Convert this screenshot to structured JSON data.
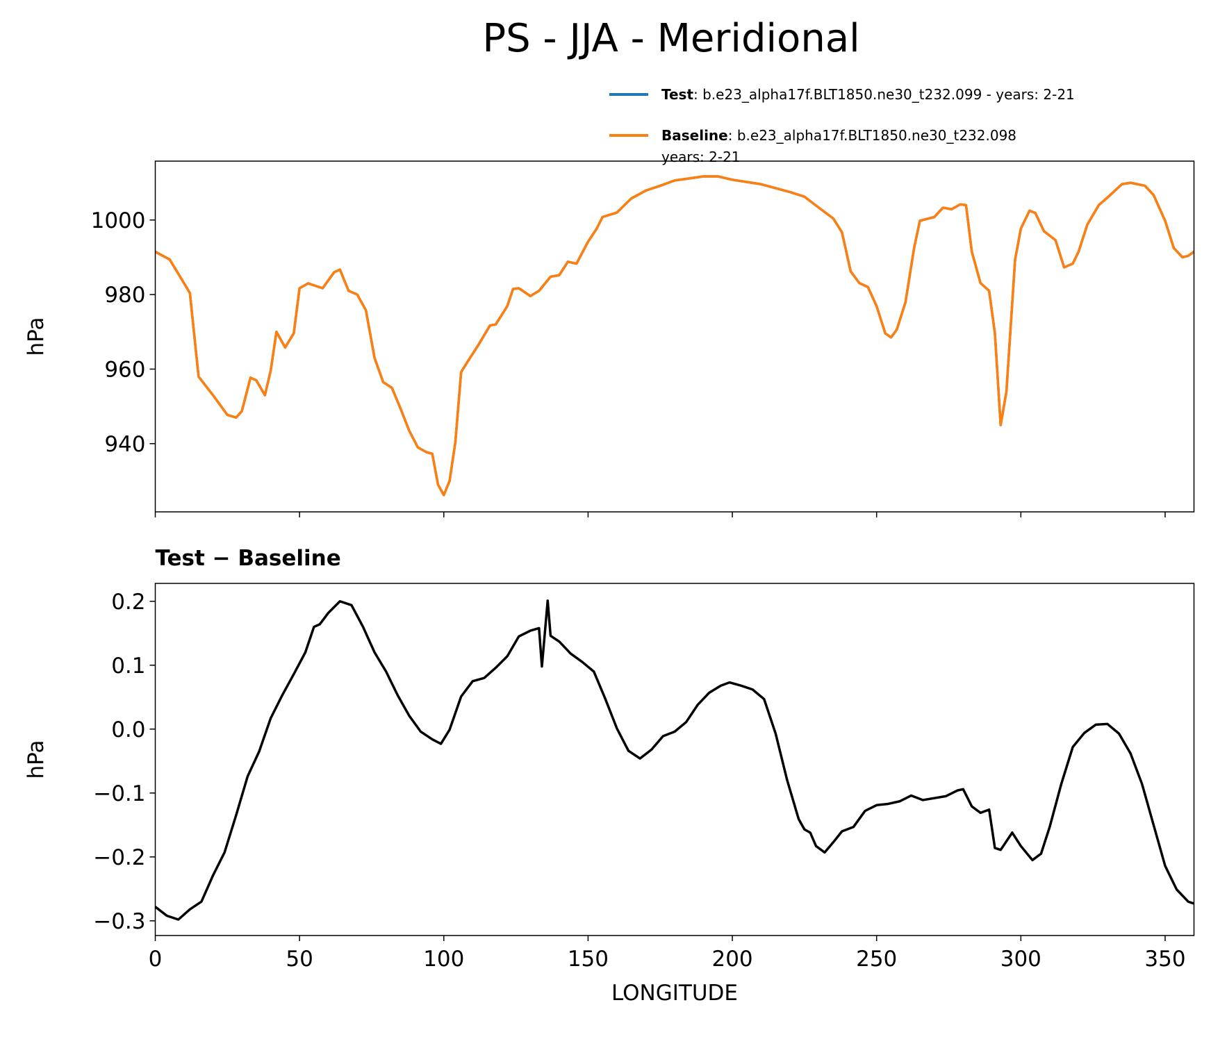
{
  "title": "PS - JJA - Meridional",
  "chart_data": [
    {
      "type": "line",
      "ylabel": "hPa",
      "x": [
        0,
        5,
        10,
        12,
        15,
        20,
        25,
        28,
        30,
        33,
        35,
        38,
        40,
        42,
        45,
        48,
        50,
        53,
        58,
        62,
        64,
        67,
        70,
        73,
        76,
        79,
        82,
        85,
        88,
        91,
        94,
        96,
        98,
        100,
        102,
        104,
        106,
        108,
        112,
        116,
        118,
        122,
        124,
        126,
        130,
        133,
        137,
        140,
        143,
        146,
        150,
        153,
        155,
        160,
        165,
        170,
        175,
        180,
        190,
        195,
        200,
        210,
        220,
        225,
        230,
        235,
        238,
        241,
        244,
        247,
        250,
        253,
        255,
        257,
        260,
        263,
        265,
        267,
        270,
        273,
        276,
        279,
        281,
        283,
        286,
        289,
        291,
        293,
        295,
        298,
        300,
        303,
        305,
        308,
        312,
        315,
        318,
        320,
        323,
        327,
        330,
        335,
        338,
        343,
        346,
        350,
        353,
        356,
        358,
        360
      ],
      "series": [
        {
          "name": "Test",
          "description": ": b.e23_alpha17f.BLT1850.ne30_t232.099 - years: 2-21",
          "color": "#1f77b4",
          "values": [
            991.5,
            989.4,
            983,
            980.4,
            958,
            953,
            947.7,
            947,
            948.7,
            957.7,
            957,
            953,
            959.6,
            970,
            965.8,
            969.6,
            981.7,
            983,
            981.7,
            986,
            986.7,
            981,
            980,
            975.8,
            963,
            956.5,
            955,
            949.4,
            943.5,
            939,
            937.7,
            937.3,
            929,
            926.2,
            930,
            940.4,
            959.2,
            961.7,
            966.5,
            971.7,
            972,
            976.9,
            981.5,
            981.7,
            979.6,
            981,
            984.8,
            985.2,
            988.8,
            988.3,
            994.2,
            997.7,
            1000.8,
            1002,
            1005.8,
            1007.9,
            1009.2,
            1010.6,
            1011.7,
            1011.7,
            1010.8,
            1009.6,
            1007.5,
            1006.25,
            1003.3,
            1000.4,
            996.7,
            986.25,
            983.1,
            982,
            976.9,
            969.6,
            968.5,
            970.6,
            977.9,
            992.5,
            999.8,
            1000.2,
            1000.8,
            1003.3,
            1002.9,
            1004.2,
            1004,
            991.5,
            983.1,
            981,
            969.6,
            945,
            954,
            989.4,
            997.7,
            1002.5,
            1001.9,
            997,
            994.6,
            987.3,
            988.3,
            991.5,
            998.7,
            1004,
            1006,
            1009.6,
            1010,
            1009.2,
            1006.7,
            999.8,
            992.5,
            990,
            990.4,
            991.5
          ]
        },
        {
          "name": "Baseline",
          "description": [
            ": b.e23_alpha17f.BLT1850.ne30_t232.098",
            "years: 2-21"
          ],
          "color": "#ff7f0e",
          "values": [
            991.5,
            989.4,
            983,
            980.4,
            958,
            953,
            947.7,
            947,
            948.7,
            957.7,
            957,
            953,
            959.6,
            970,
            965.8,
            969.6,
            981.7,
            983,
            981.7,
            986,
            986.7,
            981,
            980,
            975.8,
            963,
            956.5,
            955,
            949.4,
            943.5,
            939,
            937.7,
            937.3,
            929,
            926.2,
            930,
            940.4,
            959.2,
            961.7,
            966.5,
            971.7,
            972,
            976.9,
            981.5,
            981.7,
            979.6,
            981,
            984.8,
            985.2,
            988.8,
            988.3,
            994.2,
            997.7,
            1000.8,
            1002,
            1005.8,
            1007.9,
            1009.2,
            1010.6,
            1011.7,
            1011.7,
            1010.8,
            1009.6,
            1007.5,
            1006.25,
            1003.3,
            1000.4,
            996.7,
            986.25,
            983.1,
            982,
            976.9,
            969.6,
            968.5,
            970.6,
            977.9,
            992.5,
            999.8,
            1000.2,
            1000.8,
            1003.3,
            1002.9,
            1004.2,
            1004,
            991.5,
            983.1,
            981,
            969.6,
            945,
            954,
            989.4,
            997.7,
            1002.5,
            1001.9,
            997,
            994.6,
            987.3,
            988.3,
            991.5,
            998.7,
            1004,
            1006,
            1009.6,
            1010,
            1009.2,
            1006.7,
            999.8,
            992.5,
            990,
            990.4,
            991.5
          ]
        }
      ],
      "xlim": [
        0,
        360
      ],
      "xticks": [
        0,
        50,
        100,
        150,
        200,
        250,
        300,
        350
      ],
      "show_xtick_labels": false,
      "ylim": [
        921.7,
        1015.8
      ],
      "yticks": [
        940,
        960,
        980,
        1000
      ]
    },
    {
      "type": "line",
      "title": "Test − Baseline",
      "ylabel": "hPa",
      "xlabel": "LONGITUDE",
      "x": [
        0,
        4,
        8,
        12,
        16,
        20,
        24,
        28,
        32,
        36,
        40,
        44,
        48,
        52,
        55,
        57,
        60,
        64,
        68,
        72,
        76,
        80,
        84,
        88,
        92,
        96,
        99,
        102,
        106,
        110,
        114,
        118,
        122,
        126,
        130,
        133,
        134,
        136,
        137,
        140,
        144,
        148,
        152,
        156,
        160,
        164,
        168,
        172,
        176,
        180,
        184,
        188,
        192,
        196,
        199,
        203,
        207,
        211,
        215,
        219,
        223,
        225,
        227,
        229,
        232,
        235,
        238,
        242,
        246,
        250,
        254,
        258,
        262,
        266,
        270,
        274,
        278,
        280,
        283,
        286,
        289,
        291,
        293,
        297,
        300,
        304,
        307,
        310,
        314,
        318,
        322,
        326,
        330,
        334,
        338,
        342,
        346,
        350,
        354,
        358,
        360
      ],
      "values": [
        -0.278,
        -0.292,
        -0.298,
        -0.282,
        -0.27,
        -0.229,
        -0.193,
        -0.135,
        -0.074,
        -0.035,
        0.017,
        0.053,
        0.086,
        0.12,
        0.16,
        0.164,
        0.182,
        0.2,
        0.194,
        0.16,
        0.12,
        0.09,
        0.053,
        0.021,
        -0.004,
        -0.016,
        -0.023,
        -0.001,
        0.051,
        0.075,
        0.08,
        0.096,
        0.114,
        0.145,
        0.154,
        0.158,
        0.098,
        0.201,
        0.146,
        0.137,
        0.118,
        0.105,
        0.09,
        0.047,
        0.001,
        -0.034,
        -0.046,
        -0.032,
        -0.011,
        -0.004,
        0.011,
        0.038,
        0.057,
        0.068,
        0.073,
        0.068,
        0.062,
        0.047,
        -0.007,
        -0.08,
        -0.141,
        -0.157,
        -0.162,
        -0.183,
        -0.193,
        -0.177,
        -0.16,
        -0.153,
        -0.128,
        -0.119,
        -0.117,
        -0.113,
        -0.104,
        -0.111,
        -0.108,
        -0.105,
        -0.096,
        -0.094,
        -0.121,
        -0.131,
        -0.126,
        -0.186,
        -0.189,
        -0.162,
        -0.183,
        -0.205,
        -0.195,
        -0.153,
        -0.086,
        -0.028,
        -0.006,
        0.007,
        0.008,
        -0.007,
        -0.038,
        -0.086,
        -0.15,
        -0.214,
        -0.251,
        -0.27,
        -0.273
      ],
      "color": "#000000",
      "xlim": [
        0,
        360
      ],
      "xticks": [
        0,
        50,
        100,
        150,
        200,
        250,
        300,
        350
      ],
      "show_xtick_labels": true,
      "ylim": [
        -0.323,
        0.228
      ],
      "yticks": [
        {
          "value": -0.3,
          "label": "−0.3"
        },
        {
          "value": -0.2,
          "label": "−0.2"
        },
        {
          "value": -0.1,
          "label": "−0.1"
        },
        {
          "value": 0,
          "label": "0.0"
        },
        0.1,
        0.2
      ]
    }
  ]
}
